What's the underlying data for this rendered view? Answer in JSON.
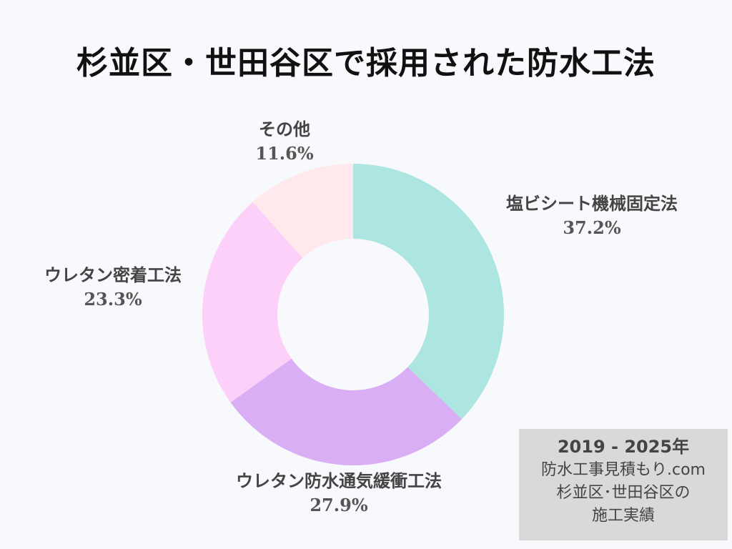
{
  "title": "杉並区・世田谷区で採用された防水工法",
  "chart_data": {
    "type": "pie",
    "donut": true,
    "start_angle_deg": 0,
    "direction": "clockwise",
    "slices": [
      {
        "label": "塩ビシート機械固定法",
        "value": 37.2,
        "value_label": "37.2%",
        "color": "#ade5e0"
      },
      {
        "label": "ウレタン防水通気緩衝工法",
        "value": 27.9,
        "value_label": "27.9%",
        "color": "#d9aef4"
      },
      {
        "label": "ウレタン密着工法",
        "value": 23.3,
        "value_label": "23.3%",
        "color": "#fdd0fa"
      },
      {
        "label": "その他",
        "value": 11.6,
        "value_label": "11.6%",
        "color": "#ffe9ec"
      }
    ]
  },
  "info_box": {
    "period": "2019 - 2025年",
    "lines": [
      "防水工事見積もり.com",
      "杉並区･世田谷区の",
      "施工実績"
    ]
  }
}
